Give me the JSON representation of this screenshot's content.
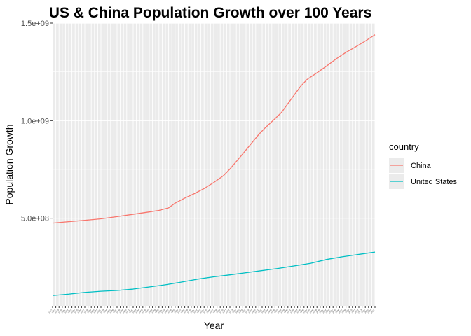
{
  "chart_data": {
    "type": "line",
    "title": "US & China Population Growth over 100 Years",
    "xlabel": "Year",
    "ylabel": "Population Growth",
    "x_range": [
      1917,
      2017
    ],
    "ylim": [
      50000000,
      1500000000
    ],
    "y_ticks": [
      {
        "value": 500000000,
        "label": "5.0e+08"
      },
      {
        "value": 1000000000,
        "label": "1.0e+09"
      },
      {
        "value": 1500000000,
        "label": "1.5e+09"
      }
    ],
    "grid": true,
    "panel_background": "#ebebeb",
    "legend": {
      "title": "country",
      "position": "right"
    },
    "series": [
      {
        "name": "China",
        "color": "#f8766d",
        "points": [
          [
            1917,
            475000000
          ],
          [
            1922,
            482000000
          ],
          [
            1927,
            489000000
          ],
          [
            1932,
            497000000
          ],
          [
            1937,
            508000000
          ],
          [
            1942,
            520000000
          ],
          [
            1947,
            532000000
          ],
          [
            1950,
            540000000
          ],
          [
            1953,
            553000000
          ],
          [
            1955,
            577000000
          ],
          [
            1958,
            603000000
          ],
          [
            1961,
            626000000
          ],
          [
            1964,
            652000000
          ],
          [
            1967,
            683000000
          ],
          [
            1970,
            718000000
          ],
          [
            1972,
            752000000
          ],
          [
            1975,
            810000000
          ],
          [
            1978,
            870000000
          ],
          [
            1981,
            930000000
          ],
          [
            1983,
            964000000
          ],
          [
            1986,
            1010000000
          ],
          [
            1988,
            1042000000
          ],
          [
            1991,
            1110000000
          ],
          [
            1994,
            1177000000
          ],
          [
            1996,
            1212000000
          ],
          [
            1999,
            1245000000
          ],
          [
            2002,
            1280000000
          ],
          [
            2005,
            1317000000
          ],
          [
            2008,
            1350000000
          ],
          [
            2011,
            1378000000
          ],
          [
            2014,
            1408000000
          ],
          [
            2017,
            1440000000
          ]
        ]
      },
      {
        "name": "United States",
        "color": "#00bfc4",
        "points": [
          [
            1917,
            103000000
          ],
          [
            1922,
            110000000
          ],
          [
            1927,
            119000000
          ],
          [
            1932,
            125000000
          ],
          [
            1937,
            129000000
          ],
          [
            1942,
            136000000
          ],
          [
            1947,
            147000000
          ],
          [
            1952,
            158000000
          ],
          [
            1957,
            172000000
          ],
          [
            1962,
            187000000
          ],
          [
            1967,
            199000000
          ],
          [
            1972,
            209000000
          ],
          [
            1977,
            220000000
          ],
          [
            1982,
            231000000
          ],
          [
            1987,
            242000000
          ],
          [
            1992,
            255000000
          ],
          [
            1997,
            268000000
          ],
          [
            2002,
            288000000
          ],
          [
            2007,
            302000000
          ],
          [
            2012,
            314000000
          ],
          [
            2017,
            326000000
          ]
        ]
      }
    ]
  }
}
